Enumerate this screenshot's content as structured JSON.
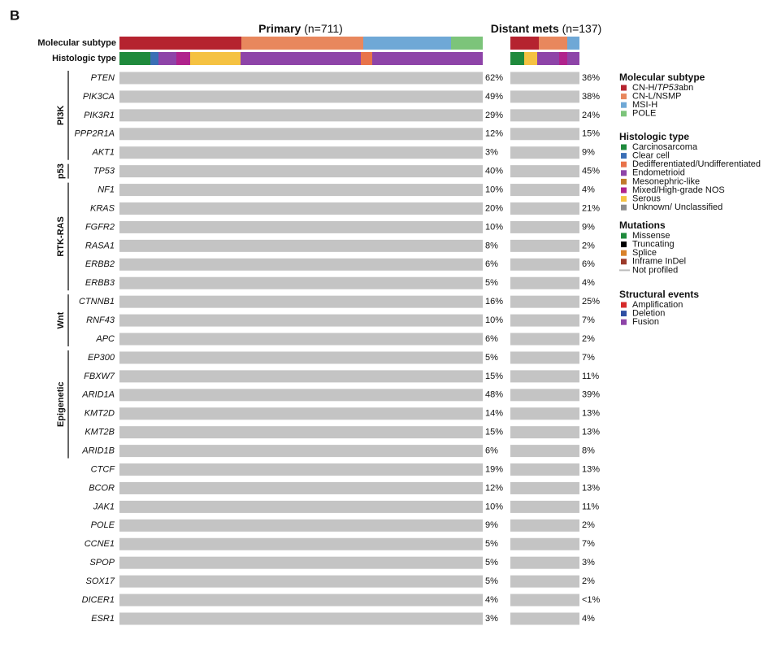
{
  "panel_label": "B",
  "primary_title": {
    "name": "Primary",
    "n": "(n=711)"
  },
  "mets_title": {
    "name": "Distant mets",
    "n": "(n=137)"
  },
  "track_labels": [
    "Molecular subtype",
    "Histologic type"
  ],
  "groups": [
    {
      "label": "PI3K",
      "genes": [
        {
          "name": "PTEN",
          "primary": "62%",
          "mets": "36%"
        },
        {
          "name": "PIK3CA",
          "primary": "49%",
          "mets": "38%"
        },
        {
          "name": "PIK3R1",
          "primary": "29%",
          "mets": "24%"
        },
        {
          "name": "PPP2R1A",
          "primary": "12%",
          "mets": "15%"
        },
        {
          "name": "AKT1",
          "primary": "3%",
          "mets": "9%"
        }
      ]
    },
    {
      "label": "p53",
      "genes": [
        {
          "name": "TP53",
          "primary": "40%",
          "mets": "45%"
        }
      ]
    },
    {
      "label": "RTK-RAS",
      "genes": [
        {
          "name": "NF1",
          "primary": "10%",
          "mets": "4%"
        },
        {
          "name": "KRAS",
          "primary": "20%",
          "mets": "21%"
        },
        {
          "name": "FGFR2",
          "primary": "10%",
          "mets": "9%"
        },
        {
          "name": "RASA1",
          "primary": "8%",
          "mets": "2%"
        },
        {
          "name": "ERBB2",
          "primary": "6%",
          "mets": "6%"
        },
        {
          "name": "ERBB3",
          "primary": "5%",
          "mets": "4%"
        }
      ]
    },
    {
      "label": "Wnt",
      "genes": [
        {
          "name": "CTNNB1",
          "primary": "16%",
          "mets": "25%"
        },
        {
          "name": "RNF43",
          "primary": "10%",
          "mets": "7%"
        },
        {
          "name": "APC",
          "primary": "6%",
          "mets": "2%"
        }
      ]
    },
    {
      "label": "Epigenetic",
      "genes": [
        {
          "name": "EP300",
          "primary": "5%",
          "mets": "7%"
        },
        {
          "name": "FBXW7",
          "primary": "15%",
          "mets": "11%"
        },
        {
          "name": "ARID1A",
          "primary": "48%",
          "mets": "39%"
        },
        {
          "name": "KMT2D",
          "primary": "14%",
          "mets": "13%"
        },
        {
          "name": "KMT2B",
          "primary": "15%",
          "mets": "13%"
        },
        {
          "name": "ARID1B",
          "primary": "6%",
          "mets": "8%"
        }
      ]
    },
    {
      "label": null,
      "genes": [
        {
          "name": "CTCF",
          "primary": "19%",
          "mets": "13%"
        },
        {
          "name": "BCOR",
          "primary": "12%",
          "mets": "13%"
        },
        {
          "name": "JAK1",
          "primary": "10%",
          "mets": "11%"
        },
        {
          "name": "POLE",
          "primary": "9%",
          "mets": "2%"
        },
        {
          "name": "CCNE1",
          "primary": "5%",
          "mets": "7%"
        },
        {
          "name": "SPOP",
          "primary": "5%",
          "mets": "3%"
        },
        {
          "name": "SOX17",
          "primary": "5%",
          "mets": "2%"
        },
        {
          "name": "DICER1",
          "primary": "4%",
          "mets": "<1%"
        },
        {
          "name": "ESR1",
          "primary": "3%",
          "mets": "4%"
        }
      ]
    }
  ],
  "legend": [
    {
      "title": "Molecular subtype",
      "items": [
        {
          "label_parts": [
            "CN-H/",
            "TP53",
            "abn"
          ],
          "color": "#b5232f"
        },
        {
          "label": "CN-L/NSMP",
          "color": "#e8875d"
        },
        {
          "label": "MSI-H",
          "color": "#6fa8d6"
        },
        {
          "label": "POLE",
          "color": "#7cc47a"
        }
      ]
    },
    {
      "title": "Histologic type",
      "items": [
        {
          "label": "Carcinosarcoma",
          "color": "#1f8a3c"
        },
        {
          "label": "Clear cell",
          "color": "#3a6fb5"
        },
        {
          "label": "Dedifferentiated/Undifferentiated",
          "color": "#e8734a"
        },
        {
          "label": "Endometrioid",
          "color": "#8e44a8"
        },
        {
          "label": "Mesonephric-like",
          "color": "#c07a2a"
        },
        {
          "label": "Mixed/High-grade NOS",
          "color": "#b0238c"
        },
        {
          "label": "Serous",
          "color": "#f5c242"
        },
        {
          "label": "Unknown/ Unclassified",
          "color": "#8c8c8c"
        }
      ]
    },
    {
      "title": "Mutations",
      "items": [
        {
          "label": "Missense",
          "color": "#1f8a3c"
        },
        {
          "label": "Truncating",
          "color": "#000000"
        },
        {
          "label": "Splice",
          "color": "#d9822b"
        },
        {
          "label": "Inframe InDel",
          "color": "#9c3a2a"
        },
        {
          "label": "Not profiled",
          "color": "#bbbbbb",
          "line": true
        }
      ]
    },
    {
      "title": "Structural events",
      "items": [
        {
          "label": "Amplification",
          "color": "#d62b2b"
        },
        {
          "label": "Deletion",
          "color": "#2f4fa3"
        },
        {
          "label": "Fusion",
          "color": "#8e44a8"
        }
      ]
    }
  ]
}
